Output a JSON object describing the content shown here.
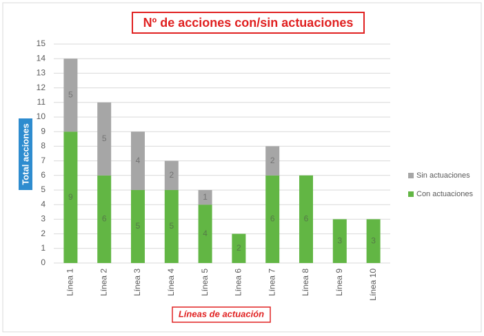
{
  "chart_data": {
    "type": "stacked_bar",
    "title": "Nº de acciones con/sin actuaciones",
    "y_label": "Total acciones",
    "x_label": "Líneas de actuación",
    "categories": [
      "Línea 1",
      "Línea 2",
      "Línea 3",
      "Línea 4",
      "Línea 5",
      "Línea 6",
      "Línea 7",
      "Línea 8",
      "Línea 9",
      "Línea 10"
    ],
    "series": [
      {
        "name": "Con actuaciones",
        "color": "#62b644",
        "values": [
          9,
          6,
          5,
          5,
          4,
          2,
          6,
          6,
          3,
          3
        ]
      },
      {
        "name": "Sin actuaciones",
        "color": "#a6a6a6",
        "values": [
          5,
          5,
          4,
          2,
          1,
          null,
          2,
          null,
          null,
          null
        ]
      }
    ],
    "ylim": [
      0,
      15
    ],
    "yticks": [
      0,
      1,
      2,
      3,
      4,
      5,
      6,
      7,
      8,
      9,
      10,
      11,
      12,
      13,
      14,
      15
    ],
    "grid": true,
    "legend": "right"
  }
}
